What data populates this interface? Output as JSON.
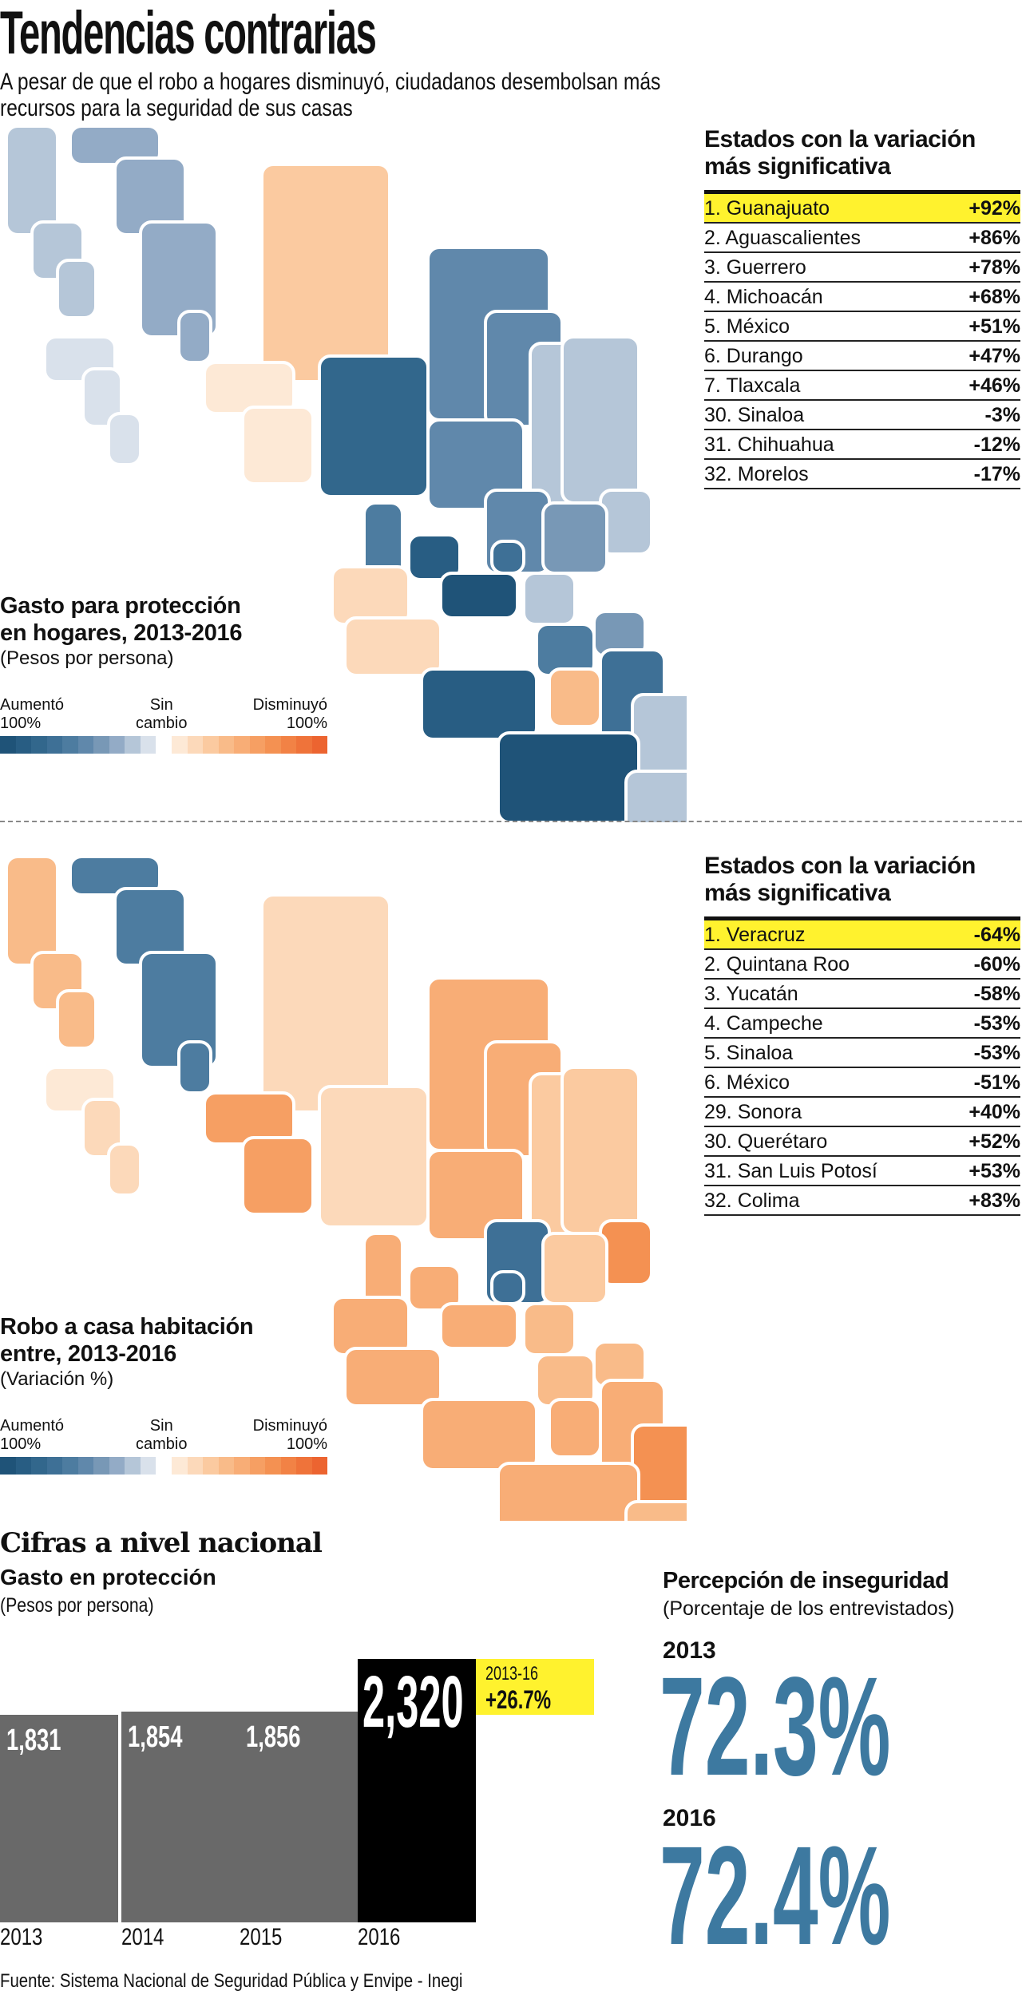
{
  "header": {
    "title": "Tendencias contrarias",
    "subtitle_line1": "A pesar de que el robo a hogares disminuyó, ciudadanos desembolsan más",
    "subtitle_line2": "recursos para la seguridad de sus casas"
  },
  "map1": {
    "legend_title_line1": "Gasto para protección",
    "legend_title_line2": "en hogares, 2013-2016",
    "legend_subtitle": "(Pesos por persona)",
    "table_title_line1": "Estados con la variación",
    "table_title_line2": "más significativa",
    "rows": [
      {
        "state": "1. Guanajuato",
        "value": "+92%",
        "highlight": true
      },
      {
        "state": "2. Aguascalientes",
        "value": "+86%"
      },
      {
        "state": "3. Guerrero",
        "value": "+78%"
      },
      {
        "state": "4. Michoacán",
        "value": "+68%"
      },
      {
        "state": "5. México",
        "value": "+51%"
      },
      {
        "state": "6. Durango",
        "value": "+47%"
      },
      {
        "state": "7. Tlaxcala",
        "value": "+46%"
      },
      {
        "state": "30. Sinaloa",
        "value": "-3%"
      },
      {
        "state": "31. Chihuahua",
        "value": "-12%"
      },
      {
        "state": "32. Morelos",
        "value": "-17%"
      }
    ]
  },
  "map2": {
    "legend_title_line1": "Robo a casa habitación",
    "legend_title_line2": "entre, 2013-2016",
    "legend_subtitle": "(Variación %)",
    "table_title_line1": "Estados con la variación",
    "table_title_line2": "más significativa",
    "rows": [
      {
        "state": "1. Veracruz",
        "value": "-64%",
        "highlight": true
      },
      {
        "state": "2. Quintana Roo",
        "value": "-60%"
      },
      {
        "state": "3. Yucatán",
        "value": "-58%"
      },
      {
        "state": "4. Campeche",
        "value": "-53%"
      },
      {
        "state": "5. Sinaloa",
        "value": "-53%"
      },
      {
        "state": "6. México",
        "value": "-51%"
      },
      {
        "state": "29. Sonora",
        "value": "+40%"
      },
      {
        "state": "30. Querétaro",
        "value": "+52%"
      },
      {
        "state": "31. San Luis Potosí",
        "value": "+53%"
      },
      {
        "state": "32. Colima",
        "value": "+83%"
      }
    ]
  },
  "legend": {
    "left_line1": "Aumentó",
    "left_line2": "100%",
    "mid_line1": "Sin",
    "mid_line2": "cambio",
    "right_line1": "Disminuyó",
    "right_line2": "100%",
    "blue_scale": [
      "#1f5378",
      "#285d83",
      "#32678c",
      "#3e7096",
      "#4d7ca0",
      "#6088ab",
      "#7898b6",
      "#93abc6",
      "#b5c6d8",
      "#d9e1eb"
    ],
    "orange_scale": [
      "#fde9d6",
      "#fcd9ba",
      "#fbcaa0",
      "#f9bb89",
      "#f8ad76",
      "#f69f63",
      "#f49152",
      "#f28245",
      "#ef733a",
      "#ec6430"
    ]
  },
  "national": {
    "heading": "Cifras a nivel nacional",
    "spending_title": "Gasto en protección",
    "spending_subtitle": "(Pesos por persona)",
    "change_period": "2013-16",
    "change_value": "+26.7%",
    "perception_title": "Percepción de inseguridad",
    "perception_subtitle": "(Porcentaje de los entrevistados)",
    "perception": [
      {
        "year": "2013",
        "value": "72.3%"
      },
      {
        "year": "2016",
        "value": "72.4%"
      }
    ]
  },
  "chart_data": {
    "type": "bar",
    "title": "Gasto en protección",
    "ylabel": "(Pesos por persona)",
    "categories": [
      "2013",
      "2014",
      "2015",
      "2016"
    ],
    "values": [
      1831,
      1854,
      1856,
      2320
    ],
    "labels": [
      "1,831",
      "1,854",
      "1,856",
      "2,320"
    ],
    "bar_colors": [
      "#696969",
      "#696969",
      "#696969",
      "#000000"
    ],
    "highlight_color": "#fff22e",
    "accent_color": "#3d79a0"
  },
  "source": "Fuente: Sistema Nacional de Seguridad Pública y Envipe - Inegi"
}
